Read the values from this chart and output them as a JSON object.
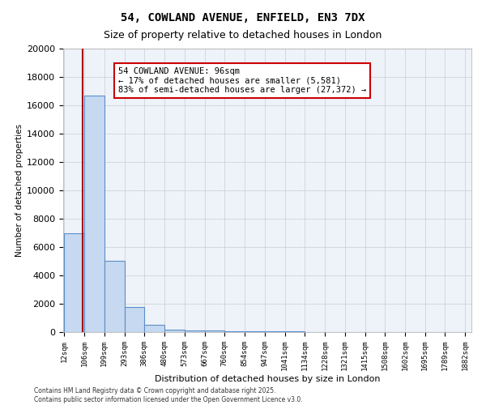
{
  "title_line1": "54, COWLAND AVENUE, ENFIELD, EN3 7DX",
  "title_line2": "Size of property relative to detached houses in London",
  "xlabel": "Distribution of detached houses by size in London",
  "ylabel": "Number of detached properties",
  "bin_edges": [
    12,
    106,
    199,
    293,
    386,
    480,
    573,
    667,
    760,
    854,
    947,
    1041,
    1134,
    1228,
    1321,
    1415,
    1508,
    1602,
    1695,
    1789,
    1882
  ],
  "bar_heights": [
    7000,
    16700,
    5050,
    1800,
    500,
    200,
    140,
    100,
    75,
    55,
    40,
    30,
    20,
    15,
    10,
    8,
    5,
    3,
    2,
    1
  ],
  "bar_color": "#c6d9f0",
  "bar_edgecolor": "#5b8ec7",
  "property_line_x": 96,
  "property_line_color": "#aa0000",
  "annotation_text": "54 COWLAND AVENUE: 96sqm\n← 17% of detached houses are smaller (5,581)\n83% of semi-detached houses are larger (27,372) →",
  "annotation_box_color": "#cc0000",
  "ylim": [
    0,
    20000
  ],
  "yticks": [
    0,
    2000,
    4000,
    6000,
    8000,
    10000,
    12000,
    14000,
    16000,
    18000,
    20000
  ],
  "grid_color": "#cccccc",
  "background_color": "#ffffff",
  "footnote": "Contains HM Land Registry data © Crown copyright and database right 2025.\nContains public sector information licensed under the Open Government Licence v3.0."
}
